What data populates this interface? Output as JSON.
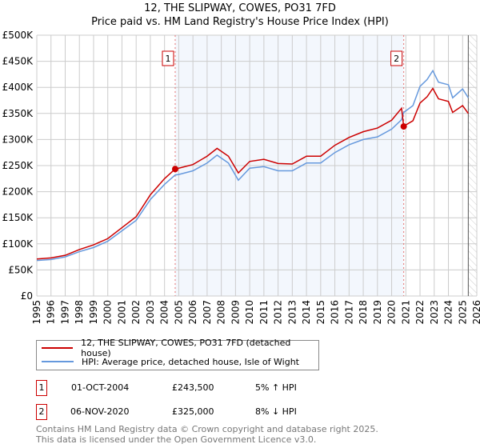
{
  "title_line1": "12, THE SLIPWAY, COWES, PO31 7FD",
  "title_line2": "Price paid vs. HM Land Registry's House Price Index (HPI)",
  "chart_data": {
    "type": "line",
    "xlim": [
      1995,
      2026
    ],
    "ylim": [
      0,
      500000
    ],
    "x_ticks": [
      "1995",
      "1996",
      "1997",
      "1998",
      "1999",
      "2000",
      "2001",
      "2002",
      "2003",
      "2004",
      "2005",
      "2006",
      "2007",
      "2008",
      "2009",
      "2010",
      "2011",
      "2012",
      "2013",
      "2014",
      "2015",
      "2016",
      "2017",
      "2018",
      "2019",
      "2020",
      "2021",
      "2022",
      "2023",
      "2024",
      "2025",
      "2026"
    ],
    "y_ticks": [
      {
        "v": 0,
        "label": "£0"
      },
      {
        "v": 50000,
        "label": "£50K"
      },
      {
        "v": 100000,
        "label": "£100K"
      },
      {
        "v": 150000,
        "label": "£150K"
      },
      {
        "v": 200000,
        "label": "£200K"
      },
      {
        "v": 250000,
        "label": "£250K"
      },
      {
        "v": 300000,
        "label": "£300K"
      },
      {
        "v": 350000,
        "label": "£350K"
      },
      {
        "v": 400000,
        "label": "£400K"
      },
      {
        "v": 450000,
        "label": "£450K"
      },
      {
        "v": 500000,
        "label": "£500K"
      }
    ],
    "grid": true,
    "shaded_range": [
      2004.75,
      2020.85
    ],
    "hatched_from": 2025.4,
    "series": [
      {
        "name": "12, THE SLIPWAY, COWES, PO31 7FD (detached house)",
        "color": "#cc0000",
        "x": [
          1995,
          1996,
          1997,
          1998,
          1999,
          2000,
          2001,
          2002,
          2003,
          2004,
          2004.75,
          2005,
          2006,
          2007,
          2007.7,
          2008.5,
          2009.2,
          2010,
          2011,
          2012,
          2013,
          2014,
          2015,
          2016,
          2017,
          2018,
          2019,
          2020,
          2020.7,
          2020.85,
          2021,
          2021.5,
          2022,
          2022.5,
          2022.9,
          2023.3,
          2024,
          2024.3,
          2025,
          2025.4
        ],
        "y": [
          71000,
          73000,
          78000,
          89000,
          98000,
          110000,
          131000,
          152000,
          194000,
          225000,
          243500,
          245000,
          252000,
          268000,
          283000,
          268000,
          236000,
          258000,
          262000,
          254000,
          253000,
          268000,
          268000,
          289000,
          304000,
          315000,
          322000,
          337000,
          360000,
          325000,
          328000,
          336000,
          370000,
          382000,
          398000,
          378000,
          373000,
          352000,
          365000,
          350000
        ]
      },
      {
        "name": "HPI: Average price, detached house, Isle of Wight",
        "color": "#6699dd",
        "x": [
          1995,
          1996,
          1997,
          1998,
          1999,
          2000,
          2001,
          2002,
          2003,
          2004,
          2004.75,
          2005,
          2006,
          2007,
          2007.7,
          2008.5,
          2009.2,
          2010,
          2011,
          2012,
          2013,
          2014,
          2015,
          2016,
          2017,
          2018,
          2019,
          2020,
          2020.7,
          2020.85,
          2021,
          2021.5,
          2022,
          2022.5,
          2022.9,
          2023.3,
          2024,
          2024.3,
          2025,
          2025.4
        ],
        "y": [
          68000,
          70000,
          75000,
          85000,
          93000,
          105000,
          125000,
          145000,
          185000,
          214000,
          232000,
          233000,
          240000,
          255000,
          270000,
          255000,
          222000,
          245000,
          248000,
          240000,
          240000,
          255000,
          255000,
          275000,
          290000,
          300000,
          305000,
          320000,
          338000,
          352000,
          355000,
          365000,
          402000,
          415000,
          432000,
          410000,
          405000,
          380000,
          397000,
          380000
        ]
      }
    ],
    "annotations": [
      {
        "label": "1",
        "x": 2004.75,
        "y": 243500
      },
      {
        "label": "2",
        "x": 2020.85,
        "y": 325000
      }
    ]
  },
  "legend": {
    "property": "12, THE SLIPWAY, COWES, PO31 7FD (detached house)",
    "hpi": "HPI: Average price, detached house, Isle of Wight"
  },
  "sales": [
    {
      "num": "1",
      "date": "01-OCT-2004",
      "price": "£243,500",
      "hpi": "5% ↑ HPI"
    },
    {
      "num": "2",
      "date": "06-NOV-2020",
      "price": "£325,000",
      "hpi": "8% ↓ HPI"
    }
  ],
  "footer_line1": "Contains HM Land Registry data © Crown copyright and database right 2025.",
  "footer_line2": "This data is licensed under the Open Government Licence v3.0."
}
